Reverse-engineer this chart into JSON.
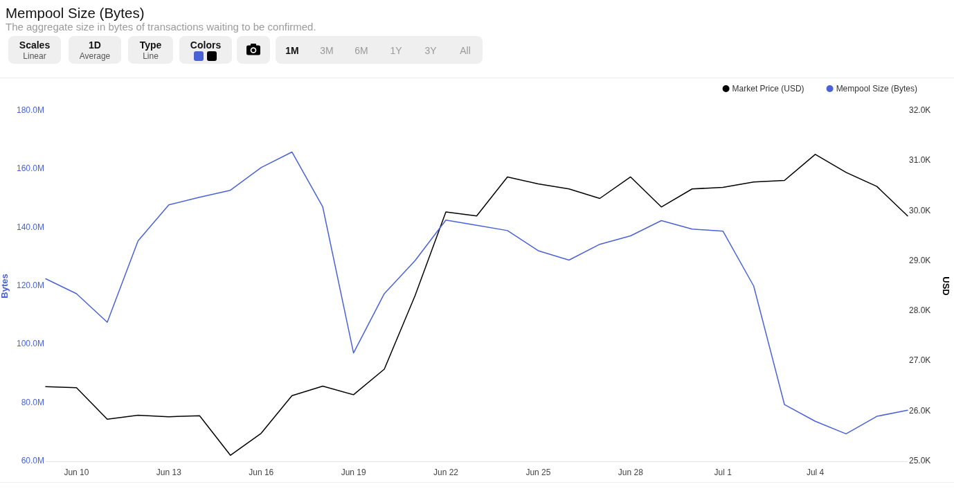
{
  "chart_data": {
    "type": "line",
    "title": "Mempool Size (Bytes)",
    "subtitle": "The aggregate size in bytes of transactions waiting to be confirmed.",
    "ylabel": "Bytes",
    "y2label": "USD",
    "x": [
      "--06-09",
      "--06-10",
      "--06-11",
      "--06-12",
      "--06-13",
      "--06-14",
      "--06-15",
      "--06-16",
      "--06-17",
      "--06-18",
      "--06-19",
      "--06-20",
      "--06-21",
      "--06-22",
      "--06-23",
      "--06-24",
      "--06-25",
      "--06-26",
      "--06-27",
      "--06-28",
      "--06-29",
      "--06-30",
      "--07-01",
      "--07-02",
      "--07-03",
      "--07-04",
      "--07-05",
      "--07-06",
      "--07-07"
    ],
    "xlim": [
      "--06-09",
      "--07-07"
    ],
    "xticks": [
      {
        "value": "--06-10",
        "label": "Jun 10"
      },
      {
        "value": "--06-13",
        "label": "Jun 13"
      },
      {
        "value": "--06-16",
        "label": "Jun 16"
      },
      {
        "value": "--06-19",
        "label": "Jun 19"
      },
      {
        "value": "--06-22",
        "label": "Jun 22"
      },
      {
        "value": "--06-25",
        "label": "Jun 25"
      },
      {
        "value": "--06-28",
        "label": "Jun 28"
      },
      {
        "value": "--07-01",
        "label": "Jul 1"
      },
      {
        "value": "--07-04",
        "label": "Jul 4"
      }
    ],
    "ylim": [
      60000000,
      180000000
    ],
    "yticks": [
      {
        "value": 60000000,
        "label": "60.0M"
      },
      {
        "value": 80000000,
        "label": "80.0M"
      },
      {
        "value": 100000000,
        "label": "100.0M"
      },
      {
        "value": 120000000,
        "label": "120.0M"
      },
      {
        "value": 140000000,
        "label": "140.0M"
      },
      {
        "value": 160000000,
        "label": "160.0M"
      },
      {
        "value": 180000000,
        "label": "180.0M"
      }
    ],
    "y2lim": [
      25000,
      32000
    ],
    "y2ticks": [
      {
        "value": 25000,
        "label": "25.0K"
      },
      {
        "value": 26000,
        "label": "26.0K"
      },
      {
        "value": 27000,
        "label": "27.0K"
      },
      {
        "value": 28000,
        "label": "28.0K"
      },
      {
        "value": 29000,
        "label": "29.0K"
      },
      {
        "value": 30000,
        "label": "30.0K"
      },
      {
        "value": 31000,
        "label": "31.0K"
      },
      {
        "value": 32000,
        "label": "32.0K"
      }
    ],
    "legend": "top right",
    "series": [
      {
        "name": "Market Price (USD)",
        "color": "#000000",
        "axis": "y2",
        "values": [
          26490,
          26470,
          25840,
          25920,
          25890,
          25910,
          25120,
          25560,
          26310,
          26500,
          26330,
          26840,
          28310,
          29980,
          29900,
          30680,
          30540,
          30440,
          30250,
          30680,
          30080,
          30440,
          30470,
          30580,
          30610,
          31130,
          30770,
          30490,
          29900
        ]
      },
      {
        "name": "Mempool Size (Bytes)",
        "color": "#4a62d6",
        "values": [
          122500000,
          117400000,
          107600000,
          135500000,
          147800000,
          150400000,
          152800000,
          160600000,
          165900000,
          147100000,
          97100000,
          117400000,
          128700000,
          142600000,
          140800000,
          139000000,
          132100000,
          128900000,
          134300000,
          137200000,
          142400000,
          139500000,
          138800000,
          120000000,
          79400000,
          73700000,
          69400000,
          75400000,
          77500000
        ]
      }
    ],
    "annotations": [
      "Scales",
      "Linear",
      "1D",
      "Average",
      "Type",
      "Line",
      "Colors",
      "1M",
      "3M",
      "6M",
      "1Y",
      "3Y",
      "All"
    ]
  }
}
